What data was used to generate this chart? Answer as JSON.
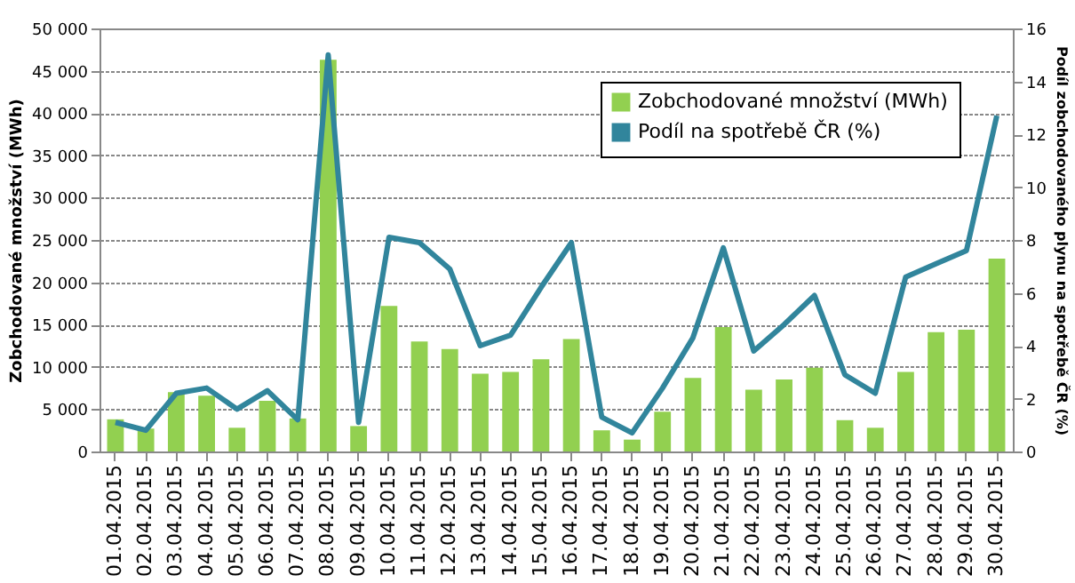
{
  "chart_data": {
    "type": "bar",
    "categories": [
      "01.04.2015",
      "02.04.2015",
      "03.04.2015",
      "04.04.2015",
      "05.04.2015",
      "06.04.2015",
      "07.04.2015",
      "08.04.2015",
      "09.04.2015",
      "10.04.2015",
      "11.04.2015",
      "12.04.2015",
      "13.04.2015",
      "14.04.2015",
      "15.04.2015",
      "16.04.2015",
      "17.04.2015",
      "18.04.2015",
      "19.04.2015",
      "20.04.2015",
      "21.04.2015",
      "22.04.2015",
      "23.04.2015",
      "24.04.2015",
      "25.04.2015",
      "26.04.2015",
      "27.04.2015",
      "28.04.2015",
      "29.04.2015",
      "30.04.2015"
    ],
    "series": [
      {
        "name": "Zobchodované množství (MWh)",
        "color": "#92d050",
        "values": [
          3800,
          2700,
          7000,
          6600,
          2800,
          6000,
          3900,
          46300,
          3000,
          17200,
          13000,
          12100,
          9200,
          9400,
          10900,
          13300,
          2500,
          1400,
          4700,
          8700,
          14700,
          7300,
          8500,
          9900,
          3700,
          2800,
          9400,
          14100,
          14400,
          22800
        ]
      },
      {
        "name": "Podíl na spotřebě ČR (%)",
        "type": "line",
        "axis": "y2",
        "color": "#31859c",
        "values": [
          1.1,
          0.8,
          2.2,
          2.4,
          1.6,
          2.3,
          1.2,
          15.0,
          1.1,
          8.1,
          7.9,
          6.9,
          4.0,
          4.4,
          6.2,
          7.9,
          1.3,
          0.7,
          2.4,
          4.3,
          7.7,
          3.8,
          4.8,
          5.9,
          2.9,
          2.2,
          6.6,
          7.1,
          7.6,
          12.7
        ]
      }
    ],
    "ylabel": "Zobchodované  množství (MWh)",
    "y2label": "Podíl zobchodovaného  plynu na spotřebě ČR (%)",
    "ylim": [
      0,
      50000
    ],
    "yticks": [
      {
        "value": 0,
        "label": "0"
      },
      {
        "value": 5000,
        "label": "5 000"
      },
      {
        "value": 10000,
        "label": "10 000"
      },
      {
        "value": 15000,
        "label": "15 000"
      },
      {
        "value": 20000,
        "label": "20 000"
      },
      {
        "value": 25000,
        "label": "25 000"
      },
      {
        "value": 30000,
        "label": "30 000"
      },
      {
        "value": 35000,
        "label": "35 000"
      },
      {
        "value": 40000,
        "label": "40 000"
      },
      {
        "value": 45000,
        "label": "45 000"
      },
      {
        "value": 50000,
        "label": "50 000"
      }
    ],
    "y2lim": [
      0,
      16
    ],
    "y2ticks": [
      0,
      2,
      4,
      6,
      8,
      10,
      12,
      14,
      16
    ],
    "grid": "y",
    "legend": "top right",
    "marker": "none",
    "line_style": "solid"
  }
}
